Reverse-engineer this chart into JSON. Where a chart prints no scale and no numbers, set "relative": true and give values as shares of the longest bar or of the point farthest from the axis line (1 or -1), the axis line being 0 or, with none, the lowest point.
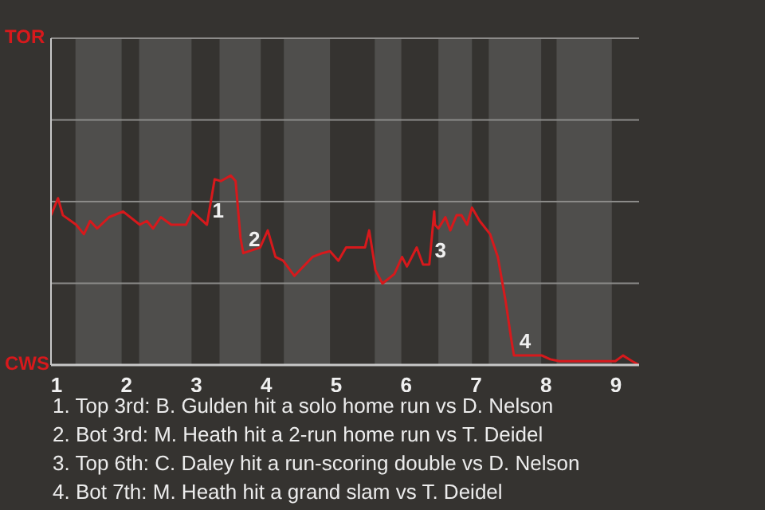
{
  "chart_data": {
    "type": "line",
    "relative": true,
    "xlim": [
      0.92,
      9.33
    ],
    "xticks": [
      1,
      2,
      3,
      4,
      5,
      6,
      7,
      8,
      9
    ],
    "ref_lines": [
      {
        "axis": "y",
        "value": 0.431,
        "color": "#8c8b89"
      },
      {
        "axis": "y",
        "value": 0.862,
        "color": "#8c8b89"
      },
      {
        "axis": "y",
        "value": 1.293,
        "color": "#8c8b89"
      },
      {
        "axis": "y",
        "value": 1.724,
        "color": "#8c8b89"
      }
    ],
    "x": [
      0.92,
      1.02,
      1.09,
      1.28,
      1.39,
      1.48,
      1.58,
      1.75,
      1.95,
      2.19,
      2.29,
      2.38,
      2.49,
      2.64,
      2.85,
      2.94,
      3.15,
      3.26,
      3.35,
      3.49,
      3.56,
      3.63,
      3.67,
      3.91,
      4.02,
      4.13,
      4.24,
      4.4,
      4.66,
      4.8,
      4.91,
      5.03,
      5.14,
      5.41,
      5.47,
      5.56,
      5.66,
      5.83,
      5.94,
      6.01,
      6.08,
      6.15,
      6.24,
      6.33,
      6.4,
      6.41,
      6.46,
      6.56,
      6.63,
      6.72,
      6.79,
      6.87,
      6.94,
      7.05,
      7.2,
      7.31,
      7.42,
      7.5,
      7.54,
      7.69,
      7.94,
      8.06,
      8.19,
      8.35,
      8.79,
      8.86,
      8.99,
      9.1,
      9.23,
      9.33
    ],
    "series": [
      {
        "color": "#d7191c",
        "values": [
          0.79,
          0.88,
          0.79,
          0.74,
          0.69,
          0.76,
          0.72,
          0.78,
          0.81,
          0.74,
          0.76,
          0.72,
          0.78,
          0.74,
          0.74,
          0.81,
          0.74,
          0.98,
          0.97,
          1,
          0.97,
          0.67,
          0.59,
          0.62,
          0.71,
          0.57,
          0.55,
          0.47,
          0.57,
          0.59,
          0.6,
          0.55,
          0.62,
          0.62,
          0.71,
          0.5,
          0.43,
          0.48,
          0.57,
          0.52,
          0.57,
          0.62,
          0.53,
          0.53,
          0.81,
          0.74,
          0.72,
          0.78,
          0.71,
          0.79,
          0.79,
          0.74,
          0.83,
          0.76,
          0.69,
          0.57,
          0.34,
          0.14,
          0.05,
          0.05,
          0.05,
          0.03,
          0.02,
          0.02,
          0.02,
          0.02,
          0.02,
          0.05,
          0.02,
          0
        ]
      }
    ],
    "bands": [
      {
        "axis": "x",
        "from": 1.27,
        "to": 1.93,
        "color": "#4f4e4c"
      },
      {
        "axis": "x",
        "from": 2.18,
        "to": 2.93,
        "color": "#4f4e4c"
      },
      {
        "axis": "x",
        "from": 3.33,
        "to": 3.92,
        "color": "#4f4e4c"
      },
      {
        "axis": "x",
        "from": 4.25,
        "to": 4.91,
        "color": "#4f4e4c"
      },
      {
        "axis": "x",
        "from": 5.55,
        "to": 5.93,
        "color": "#4f4e4c"
      },
      {
        "axis": "x",
        "from": 6.46,
        "to": 6.94,
        "color": "#4f4e4c"
      },
      {
        "axis": "x",
        "from": 7.18,
        "to": 7.93,
        "color": "#4f4e4c"
      },
      {
        "axis": "x",
        "from": 8.15,
        "to": 8.94,
        "color": "#4f4e4c"
      }
    ],
    "annotations": [
      {
        "text": "1",
        "x": 3.15,
        "y": 0.74
      },
      {
        "text": "2",
        "x": 3.67,
        "y": 0.59
      },
      {
        "text": "3",
        "x": 6.33,
        "y": 0.53
      },
      {
        "text": "4",
        "x": 7.54,
        "y": 0.05
      },
      "TOR",
      "CWS",
      "1. Top 3rd: B. Gulden hit a solo home run vs D. Nelson",
      "2. Bot 3rd: M. Heath hit a 2-run home run vs T. Deidel",
      "3. Top 6th: C. Daley hit a run-scoring double vs D. Nelson",
      "4. Bot 7th: M. Heath hit a grand slam vs T. Deidel"
    ]
  }
}
